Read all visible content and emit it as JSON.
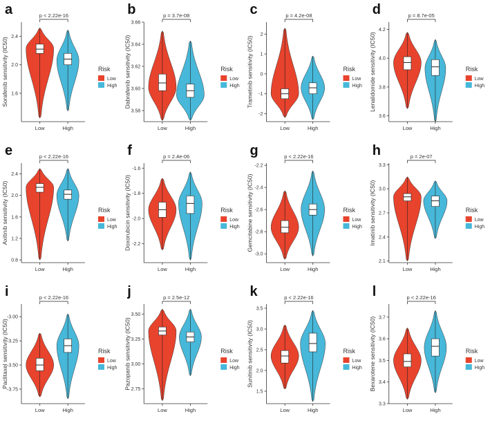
{
  "legend": {
    "title": "Risk",
    "labels": [
      "Low",
      "High"
    ]
  },
  "colors": {
    "low": "#e8432d",
    "high": "#47b8d9",
    "axis": "#333333",
    "text": "#333333",
    "grid": "#000000"
  },
  "chart_data": [
    {
      "panel": "a",
      "type": "violin",
      "title": "",
      "ylabel": "Sorafenib sensitivity (IC50)",
      "categories": [
        "Low",
        "High"
      ],
      "pvalue": "p < 2.22e-16",
      "ylim": [
        1.2,
        2.6
      ],
      "yticks": [
        1.6,
        2.0,
        2.4
      ],
      "ytick_labels": [
        "1.6",
        "2.0",
        "2.4"
      ],
      "groups": [
        {
          "name": "Low",
          "min": 1.25,
          "max": 2.52,
          "median": 2.22,
          "q1": 2.16,
          "q3": 2.29,
          "mode": 2.23,
          "width": 1.0
        },
        {
          "name": "High",
          "min": 1.35,
          "max": 2.49,
          "median": 2.08,
          "q1": 2.0,
          "q3": 2.16,
          "mode": 2.06,
          "width": 0.8
        }
      ]
    },
    {
      "panel": "b",
      "type": "violin",
      "title": "",
      "ylabel": "Dabrafenib sensitivity (IC50)",
      "categories": [
        "Low",
        "High"
      ],
      "pvalue": "p = 3.7e-08",
      "ylim": [
        3.57,
        3.66
      ],
      "yticks": [
        3.58,
        3.6,
        3.62,
        3.64,
        3.66
      ],
      "ytick_labels": [
        "3.58",
        "3.60",
        "3.62",
        "3.64",
        "3.66"
      ],
      "groups": [
        {
          "name": "Low",
          "min": 3.571,
          "max": 3.652,
          "median": 3.605,
          "q1": 3.598,
          "q3": 3.613,
          "mode": 3.601,
          "width": 1.0
        },
        {
          "name": "High",
          "min": 3.571,
          "max": 3.643,
          "median": 3.598,
          "q1": 3.592,
          "q3": 3.604,
          "mode": 3.594,
          "width": 1.0
        }
      ]
    },
    {
      "panel": "c",
      "type": "violin",
      "title": "",
      "ylabel": "Trametinib sensitivity (IC50)",
      "categories": [
        "Low",
        "High"
      ],
      "pvalue": "p = 4.2e-08",
      "ylim": [
        -2.4,
        2.6
      ],
      "yticks": [
        -2,
        -1,
        0,
        1,
        2
      ],
      "ytick_labels": [
        "-2",
        "-1",
        "0",
        "1",
        "2"
      ],
      "groups": [
        {
          "name": "Low",
          "min": -2.2,
          "max": 2.3,
          "median": -1.0,
          "q1": -1.25,
          "q3": -0.75,
          "mode": -1.0,
          "width": 1.0
        },
        {
          "name": "High",
          "min": -2.3,
          "max": 0.9,
          "median": -0.7,
          "q1": -1.0,
          "q3": -0.45,
          "mode": -0.7,
          "width": 0.85
        }
      ]
    },
    {
      "panel": "d",
      "type": "violin",
      "title": "",
      "ylabel": "Lenalidomide sensitivity (IC50)",
      "categories": [
        "Low",
        "High"
      ],
      "pvalue": "p = 8.7e-05",
      "ylim": [
        3.56,
        4.25
      ],
      "yticks": [
        3.6,
        3.8,
        4.0,
        4.2
      ],
      "ytick_labels": [
        "3.6",
        "3.8",
        "4.0",
        "4.2"
      ],
      "groups": [
        {
          "name": "Low",
          "min": 3.65,
          "max": 4.18,
          "median": 3.97,
          "q1": 3.92,
          "q3": 4.01,
          "mode": 3.97,
          "width": 1.0
        },
        {
          "name": "High",
          "min": 3.56,
          "max": 4.13,
          "median": 3.94,
          "q1": 3.88,
          "q3": 3.99,
          "mode": 3.93,
          "width": 0.75
        }
      ]
    },
    {
      "panel": "e",
      "type": "violin",
      "title": "",
      "ylabel": "Axitinib sensitivity (IC50)",
      "categories": [
        "Low",
        "High"
      ],
      "pvalue": "p < 2.22e-16",
      "ylim": [
        0.75,
        2.6
      ],
      "yticks": [
        0.8,
        1.2,
        1.6,
        2.0,
        2.4
      ],
      "ytick_labels": [
        "0.8",
        "1.2",
        "1.6",
        "2.0",
        "2.4"
      ],
      "groups": [
        {
          "name": "Low",
          "min": 0.8,
          "max": 2.5,
          "median": 2.15,
          "q1": 2.06,
          "q3": 2.22,
          "mode": 2.15,
          "width": 1.0
        },
        {
          "name": "High",
          "min": 1.15,
          "max": 2.5,
          "median": 2.02,
          "q1": 1.93,
          "q3": 2.1,
          "mode": 2.0,
          "width": 0.8
        }
      ]
    },
    {
      "panel": "f",
      "type": "violin",
      "title": "",
      "ylabel": "Doxorubicin sensitivity (IC50)",
      "categories": [
        "Low",
        "High"
      ],
      "pvalue": "p = 2.4e-06",
      "ylim": [
        -2.35,
        -1.56
      ],
      "yticks": [
        -2.2,
        -2.0,
        -1.8,
        -1.6
      ],
      "ytick_labels": [
        "-2.2",
        "-2.0",
        "-1.8",
        "-1.6"
      ],
      "groups": [
        {
          "name": "Low",
          "min": -2.25,
          "max": -1.68,
          "median": -1.93,
          "q1": -1.99,
          "q3": -1.87,
          "mode": -1.93,
          "width": 1.0
        },
        {
          "name": "High",
          "min": -2.33,
          "max": -1.63,
          "median": -1.88,
          "q1": -1.96,
          "q3": -1.82,
          "mode": -1.88,
          "width": 0.85
        }
      ]
    },
    {
      "panel": "g",
      "type": "violin",
      "title": "",
      "ylabel": "Gemcitabine sensitivity (IC50)",
      "categories": [
        "Low",
        "High"
      ],
      "pvalue": "p < 2.22e-16",
      "ylim": [
        -3.08,
        -2.18
      ],
      "yticks": [
        -3.0,
        -2.8,
        -2.6,
        -2.4,
        -2.2
      ],
      "ytick_labels": [
        "-3.0",
        "-2.8",
        "-2.6",
        "-2.4",
        "-2.2"
      ],
      "groups": [
        {
          "name": "Low",
          "min": -3.05,
          "max": -2.43,
          "median": -2.76,
          "q1": -2.81,
          "q3": -2.7,
          "mode": -2.76,
          "width": 1.0
        },
        {
          "name": "High",
          "min": -3.02,
          "max": -2.25,
          "median": -2.6,
          "q1": -2.65,
          "q3": -2.55,
          "mode": -2.6,
          "width": 0.85
        }
      ]
    },
    {
      "panel": "h",
      "type": "violin",
      "title": "",
      "ylabel": "Imatinib sensitivity (IC50)",
      "categories": [
        "Low",
        "High"
      ],
      "pvalue": "p = 2e-07",
      "ylim": [
        2.08,
        3.32
      ],
      "yticks": [
        2.1,
        2.4,
        2.7,
        3.0,
        3.3
      ],
      "ytick_labels": [
        "2.1",
        "2.4",
        "2.7",
        "3.0",
        "3.3"
      ],
      "groups": [
        {
          "name": "Low",
          "min": 2.1,
          "max": 3.15,
          "median": 2.9,
          "q1": 2.85,
          "q3": 2.94,
          "mode": 2.9,
          "width": 1.0
        },
        {
          "name": "High",
          "min": 2.38,
          "max": 3.1,
          "median": 2.85,
          "q1": 2.78,
          "q3": 2.91,
          "mode": 2.85,
          "width": 0.85
        }
      ]
    },
    {
      "panel": "i",
      "type": "violin",
      "title": "",
      "ylabel": "Paclitaxel sensitivity (IC50)",
      "categories": [
        "Low",
        "High"
      ],
      "pvalue": "p < 2.22e-16",
      "ylim": [
        -3.9,
        -2.87
      ],
      "yticks": [
        -3.75,
        -3.5,
        -3.25,
        -3.0
      ],
      "ytick_labels": [
        "-3.75",
        "-3.50",
        "-3.25",
        "-3.00"
      ],
      "groups": [
        {
          "name": "Low",
          "min": -3.83,
          "max": -3.17,
          "median": -3.5,
          "q1": -3.56,
          "q3": -3.43,
          "mode": -3.5,
          "width": 1.0
        },
        {
          "name": "High",
          "min": -3.85,
          "max": -2.97,
          "median": -3.3,
          "q1": -3.37,
          "q3": -3.23,
          "mode": -3.3,
          "width": 0.8
        }
      ]
    },
    {
      "panel": "j",
      "type": "violin",
      "title": "",
      "ylabel": "Pazopanib sensitivity (IC50)",
      "categories": [
        "Low",
        "High"
      ],
      "pvalue": "p = 2.5e-12",
      "ylim": [
        2.6,
        3.6
      ],
      "yticks": [
        2.75,
        3.0,
        3.25,
        3.5
      ],
      "ytick_labels": [
        "2.75",
        "3.00",
        "3.25",
        "3.50"
      ],
      "groups": [
        {
          "name": "Low",
          "min": 2.63,
          "max": 3.55,
          "median": 3.33,
          "q1": 3.29,
          "q3": 3.37,
          "mode": 3.33,
          "width": 1.0
        },
        {
          "name": "High",
          "min": 2.88,
          "max": 3.55,
          "median": 3.27,
          "q1": 3.22,
          "q3": 3.32,
          "mode": 3.27,
          "width": 0.8
        }
      ]
    },
    {
      "panel": "k",
      "type": "violin",
      "title": "",
      "ylabel": "Sunitinib sensitivity (IC50)",
      "categories": [
        "Low",
        "High"
      ],
      "pvalue": "p < 2.22e-16",
      "ylim": [
        1.2,
        3.6
      ],
      "yticks": [
        1.5,
        2.0,
        2.5,
        3.0,
        3.5
      ],
      "ytick_labels": [
        "1.5",
        "2.0",
        "2.5",
        "3.0",
        "3.5"
      ],
      "groups": [
        {
          "name": "Low",
          "min": 1.55,
          "max": 3.1,
          "median": 2.35,
          "q1": 2.18,
          "q3": 2.48,
          "mode": 2.35,
          "width": 1.0
        },
        {
          "name": "High",
          "min": 1.25,
          "max": 3.45,
          "median": 2.65,
          "q1": 2.45,
          "q3": 2.9,
          "mode": 2.65,
          "width": 0.9
        }
      ]
    },
    {
      "panel": "l",
      "type": "violin",
      "title": "",
      "ylabel": "Bexarotene sensitivity (IC50)",
      "categories": [
        "Low",
        "High"
      ],
      "pvalue": "p < 2.22e-16",
      "ylim": [
        3.3,
        3.76
      ],
      "yticks": [
        3.3,
        3.4,
        3.5,
        3.6,
        3.7
      ],
      "ytick_labels": [
        "3.3",
        "3.4",
        "3.5",
        "3.6",
        "3.7"
      ],
      "groups": [
        {
          "name": "Low",
          "min": 3.32,
          "max": 3.65,
          "median": 3.495,
          "q1": 3.47,
          "q3": 3.53,
          "mode": 3.5,
          "width": 1.0
        },
        {
          "name": "High",
          "min": 3.35,
          "max": 3.73,
          "median": 3.565,
          "q1": 3.52,
          "q3": 3.6,
          "mode": 3.56,
          "width": 0.8
        }
      ]
    }
  ]
}
